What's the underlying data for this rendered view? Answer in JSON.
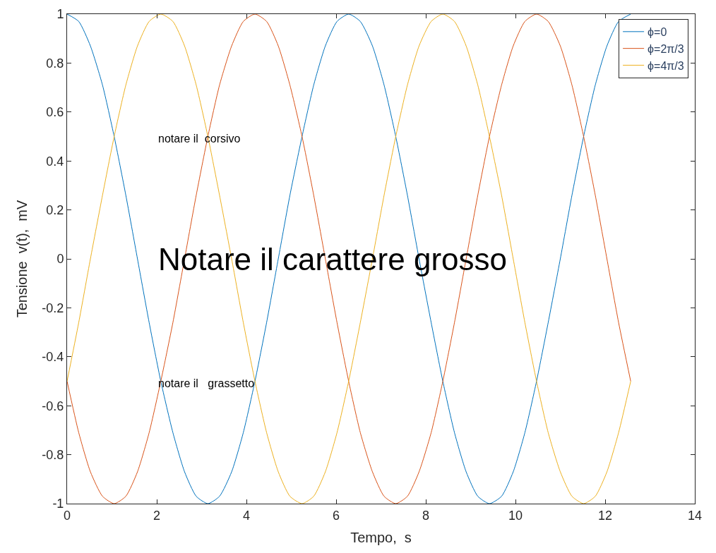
{
  "chart_data": {
    "type": "line",
    "xlabel": "Tempo,  s",
    "ylabel": "Tensione  v(t),  mV",
    "x": [
      0,
      0.26,
      0.52,
      0.79,
      1.05,
      1.31,
      1.57,
      1.83,
      2.09,
      2.36,
      2.62,
      2.88,
      3.14,
      3.4,
      3.67,
      3.93,
      4.19,
      4.45,
      4.71,
      4.97,
      5.24,
      5.5,
      5.76,
      6.02,
      6.28,
      6.54,
      6.81,
      7.07,
      7.33,
      7.59,
      7.85,
      8.12,
      8.38,
      8.64,
      8.9,
      9.16,
      9.42,
      9.69,
      9.95,
      10.21,
      10.47,
      10.73,
      11,
      11.26,
      11.52,
      11.78,
      12.04,
      12.3,
      12.57
    ],
    "series": [
      {
        "name": "ϕ=0",
        "color": "#0072bd",
        "values": [
          1,
          0.97,
          0.87,
          0.71,
          0.5,
          0.26,
          0,
          -0.26,
          -0.5,
          -0.71,
          -0.87,
          -0.97,
          -1,
          -0.97,
          -0.87,
          -0.71,
          -0.5,
          -0.26,
          0,
          0.26,
          0.5,
          0.71,
          0.87,
          0.97,
          1,
          0.97,
          0.87,
          0.71,
          0.5,
          0.26,
          0,
          -0.26,
          -0.5,
          -0.71,
          -0.87,
          -0.97,
          -1,
          -0.97,
          -0.87,
          -0.71,
          -0.5,
          -0.26,
          0,
          0.26,
          0.5,
          0.71,
          0.87,
          0.97,
          1
        ]
      },
      {
        "name": "ϕ=2π/3",
        "color": "#d95319",
        "values": [
          -0.5,
          -0.71,
          -0.87,
          -0.97,
          -1,
          -0.97,
          -0.87,
          -0.71,
          -0.5,
          -0.26,
          0,
          0.26,
          0.5,
          0.71,
          0.87,
          0.97,
          1,
          0.97,
          0.87,
          0.71,
          0.5,
          0.26,
          0,
          -0.26,
          -0.5,
          -0.71,
          -0.87,
          -0.97,
          -1,
          -0.97,
          -0.87,
          -0.71,
          -0.5,
          -0.26,
          0,
          0.26,
          0.5,
          0.71,
          0.87,
          0.97,
          1,
          0.97,
          0.87,
          0.71,
          0.5,
          0.26,
          0,
          -0.26,
          -0.5
        ]
      },
      {
        "name": "ϕ=4π/3",
        "color": "#edb120",
        "values": [
          -0.5,
          -0.26,
          0,
          0.26,
          0.5,
          0.71,
          0.87,
          0.97,
          1,
          0.97,
          0.87,
          0.71,
          0.5,
          0.26,
          0,
          -0.26,
          -0.5,
          -0.71,
          -0.87,
          -0.97,
          -1,
          -0.97,
          -0.87,
          -0.71,
          -0.5,
          -0.26,
          0,
          0.26,
          0.5,
          0.71,
          0.87,
          0.97,
          1,
          0.97,
          0.87,
          0.71,
          0.5,
          0.26,
          0,
          -0.26,
          -0.5,
          -0.71,
          -0.87,
          -0.97,
          -1,
          -0.97,
          -0.87,
          -0.71,
          -0.5
        ]
      }
    ],
    "annotations": [
      "notare il  corsivo",
      "Notare il carattere grosso",
      "notare il   grassetto"
    ],
    "xlim": [
      0,
      14
    ],
    "xticks": [
      0,
      2,
      4,
      6,
      8,
      10,
      12,
      14
    ],
    "ylim": [
      -1,
      1
    ],
    "yticks": [
      -1,
      -0.8,
      -0.6,
      -0.4,
      -0.2,
      0,
      0.2,
      0.4,
      0.6,
      0.8,
      1
    ],
    "legend": "top right",
    "marker": "none",
    "line_style": "solid"
  }
}
